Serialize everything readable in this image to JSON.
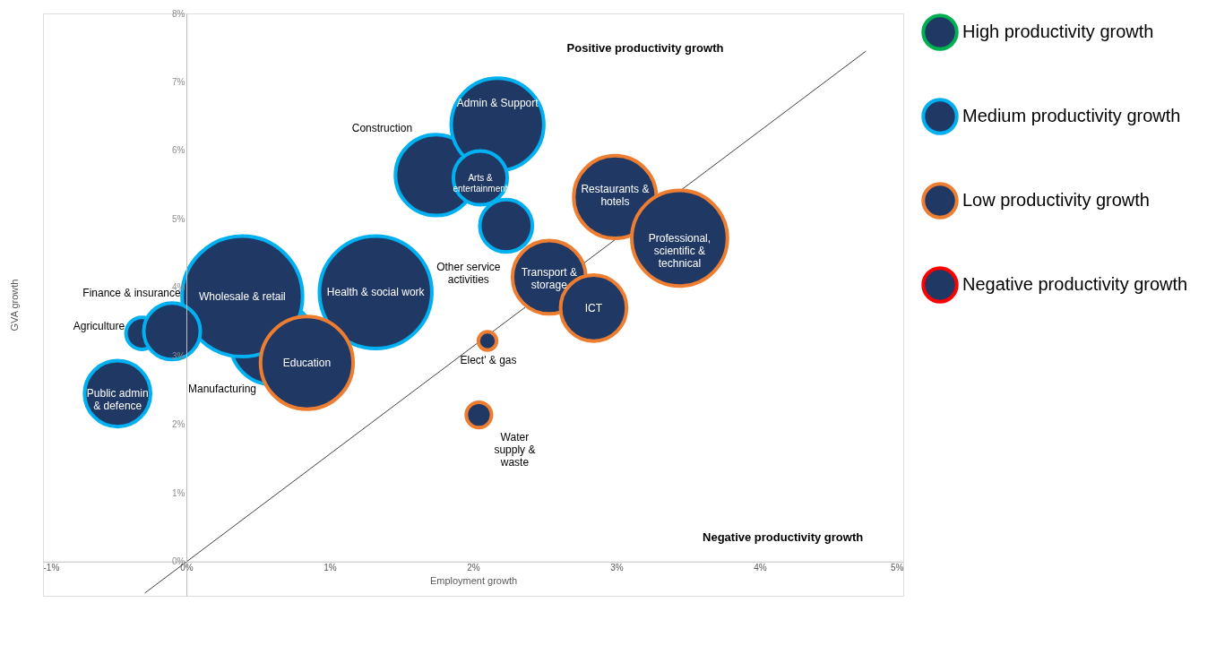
{
  "chart_data": {
    "type": "bubble",
    "xlabel": "Employment growth",
    "ylabel": "GVA growth",
    "xlim": [
      -1,
      5
    ],
    "ylim": [
      -0.5,
      8
    ],
    "xticks": [
      {
        "value": -1,
        "label": "-1%"
      },
      {
        "value": 0,
        "label": "0%"
      },
      {
        "value": 1,
        "label": "1%"
      },
      {
        "value": 2,
        "label": "2%"
      },
      {
        "value": 3,
        "label": "3%"
      },
      {
        "value": 4,
        "label": "4%"
      },
      {
        "value": 5,
        "label": "5%"
      }
    ],
    "yticks": [
      {
        "value": 0,
        "label": "0%"
      },
      {
        "value": 1,
        "label": "1%"
      },
      {
        "value": 2,
        "label": "2%"
      },
      {
        "value": 3,
        "label": "3%"
      },
      {
        "value": 4,
        "label": "4%"
      },
      {
        "value": 5,
        "label": "5%"
      },
      {
        "value": 6,
        "label": "6%"
      },
      {
        "value": 7,
        "label": "7%"
      },
      {
        "value": 8,
        "label": "8%"
      }
    ],
    "grid": false,
    "legend": "right",
    "series": [
      {
        "name": "High productivity growth",
        "color": "#00b050"
      },
      {
        "name": "Medium productivity growth",
        "color": "#00b0f0",
        "value_labels": [
          "Construction",
          "Admin & Support",
          "Arts &\nentertainment",
          "Other service\nactivities",
          "Manufacturing",
          "Wholesale & retail",
          "Health & social work",
          "Agriculture",
          "Finance & insurance",
          "Public admin\n& defence"
        ],
        "x": [
          1.74,
          2.17,
          2.05,
          2.23,
          0.6,
          0.39,
          1.32,
          -0.31,
          -0.1,
          -0.48
        ],
        "values": [
          5.64,
          6.38,
          5.6,
          4.9,
          3.2,
          3.87,
          3.93,
          3.33,
          3.36,
          2.45
        ],
        "sizes": [
          0.45,
          0.59,
          0.2,
          0.19,
          0.49,
          1,
          0.87,
          0.07,
          0.22,
          0.3
        ]
      },
      {
        "name": "Low productivity growth",
        "color": "#ed7d31",
        "value_labels": [
          "Restaurants &\nhotels",
          "Professional,\nscientific &\ntechnical",
          "Transport &\nstorage",
          "ICT",
          "Elect' & gas",
          "Water\nsupply &\nwaste",
          "Education"
        ],
        "x": [
          2.99,
          3.44,
          2.53,
          2.84,
          2.1,
          2.04,
          0.84
        ],
        "values": [
          5.32,
          4.72,
          4.15,
          3.7,
          3.22,
          2.14,
          2.9
        ],
        "sizes": [
          0.47,
          0.63,
          0.37,
          0.3,
          0.023,
          0.044,
          0.59
        ]
      },
      {
        "name": "Negative productivity growth",
        "color": "#ff0000"
      },
      {
        "type": "line",
        "color": "#404040",
        "x": [
          -0.29,
          4.74
        ],
        "values": [
          -0.46,
          7.45
        ]
      }
    ],
    "annotations": [
      "Positive productivity growth",
      "Negative productivity growth"
    ]
  }
}
